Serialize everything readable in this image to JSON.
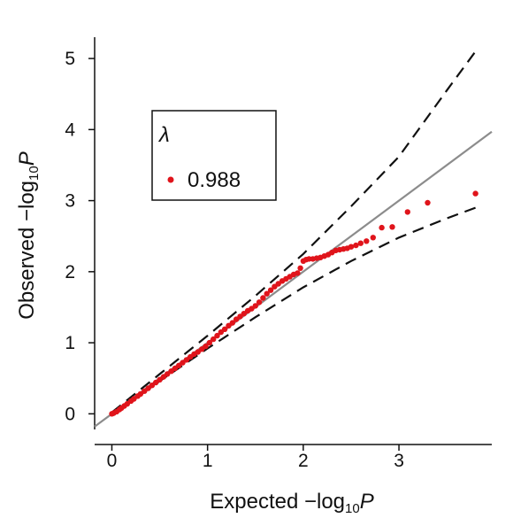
{
  "chart_data": {
    "type": "scatter",
    "xlabel": "Expected −log10P",
    "ylabel": "Observed −log10P",
    "xlim": [
      -0.18,
      3.97
    ],
    "ylim": [
      -0.22,
      5.3
    ],
    "xticks": [
      "0",
      "1",
      "2",
      "3"
    ],
    "yticks": [
      "0",
      "1",
      "2",
      "3",
      "4",
      "5"
    ],
    "grid": false,
    "legend": {
      "title": "λ",
      "placement": "top-left",
      "entries": [
        {
          "label": "0.988",
          "color": "#e0141b"
        }
      ]
    },
    "reference_line": {
      "slope": 1,
      "intercept": 0,
      "color": "#8c8c8c"
    },
    "confidence_band": {
      "style": "dashed",
      "x": [
        0,
        0.5,
        1,
        1.5,
        2,
        2.5,
        3,
        3.5,
        3.8
      ],
      "upper": [
        0.02,
        0.56,
        1.1,
        1.66,
        2.25,
        2.92,
        3.62,
        4.55,
        5.1
      ],
      "lower": [
        -0.02,
        0.46,
        0.92,
        1.36,
        1.78,
        2.15,
        2.48,
        2.75,
        2.9
      ]
    },
    "series": [
      {
        "color": "#e0141b",
        "x": [
          0.0,
          0.02,
          0.05,
          0.08,
          0.1,
          0.13,
          0.16,
          0.2,
          0.23,
          0.27,
          0.3,
          0.34,
          0.38,
          0.42,
          0.46,
          0.5,
          0.54,
          0.58,
          0.62,
          0.66,
          0.7,
          0.74,
          0.78,
          0.82,
          0.86,
          0.9,
          0.94,
          0.98,
          1.02,
          1.06,
          1.1,
          1.14,
          1.18,
          1.22,
          1.26,
          1.3,
          1.34,
          1.38,
          1.42,
          1.46,
          1.5,
          1.54,
          1.58,
          1.62,
          1.66,
          1.7,
          1.74,
          1.78,
          1.82,
          1.86,
          1.9,
          1.94,
          1.97,
          2.0,
          2.03,
          2.06,
          2.1,
          2.14,
          2.18,
          2.22,
          2.26,
          2.3,
          2.34,
          2.38,
          2.42,
          2.46,
          2.5,
          2.55,
          2.6,
          2.66,
          2.73,
          2.82,
          2.93,
          3.09,
          3.3,
          3.8
        ],
        "values": [
          0.0,
          0.01,
          0.03,
          0.06,
          0.08,
          0.11,
          0.14,
          0.18,
          0.21,
          0.25,
          0.28,
          0.32,
          0.36,
          0.4,
          0.44,
          0.48,
          0.52,
          0.56,
          0.6,
          0.64,
          0.68,
          0.72,
          0.76,
          0.8,
          0.84,
          0.87,
          0.91,
          0.95,
          1.0,
          1.05,
          1.1,
          1.15,
          1.19,
          1.24,
          1.28,
          1.33,
          1.37,
          1.41,
          1.45,
          1.48,
          1.52,
          1.57,
          1.63,
          1.69,
          1.74,
          1.79,
          1.83,
          1.87,
          1.9,
          1.93,
          1.96,
          1.98,
          2.05,
          2.15,
          2.17,
          2.18,
          2.18,
          2.19,
          2.2,
          2.22,
          2.24,
          2.27,
          2.3,
          2.31,
          2.32,
          2.33,
          2.35,
          2.37,
          2.4,
          2.43,
          2.48,
          2.62,
          2.63,
          2.84,
          2.97,
          3.1
        ]
      }
    ]
  }
}
